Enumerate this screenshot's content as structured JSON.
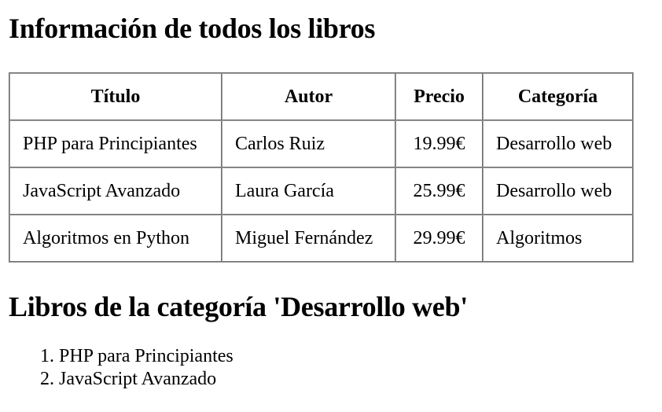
{
  "headings": {
    "all_books": "Información de todos los libros",
    "category_books": "Libros de la categoría 'Desarrollo web'"
  },
  "table": {
    "columns": [
      "Título",
      "Autor",
      "Precio",
      "Categoría"
    ],
    "rows": [
      [
        "PHP para Principiantes",
        "Carlos Ruiz",
        "19.99€",
        "Desarrollo web"
      ],
      [
        "JavaScript Avanzado",
        "Laura García",
        "25.99€",
        "Desarrollo web"
      ],
      [
        "Algoritmos en Python",
        "Miguel Fernández",
        "29.99€",
        "Algoritmos"
      ]
    ]
  },
  "category_list": [
    "PHP para Principiantes",
    "JavaScript Avanzado"
  ]
}
